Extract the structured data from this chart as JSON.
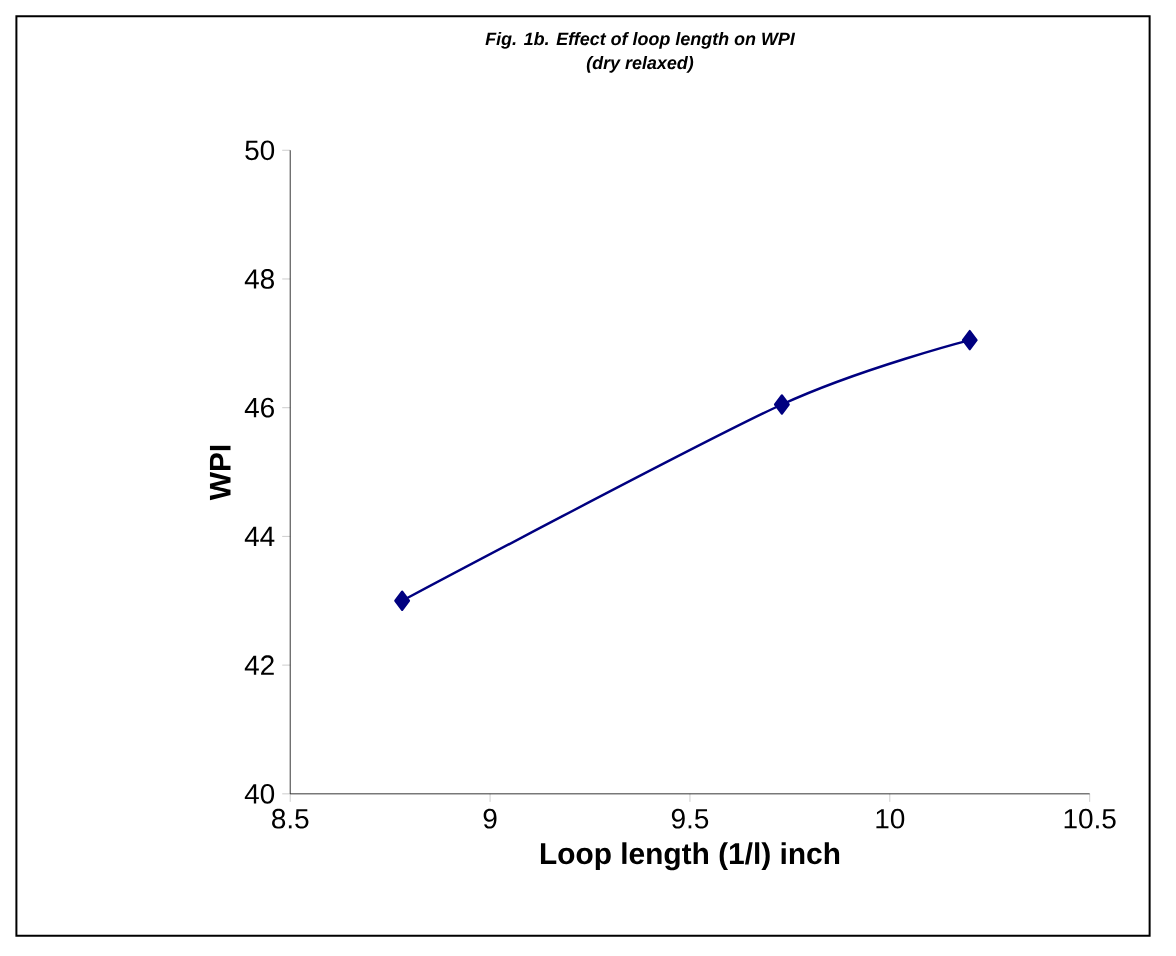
{
  "chart_data": {
    "type": "line",
    "title": "Fig. 1b. Effect of loop length on WPI",
    "subtitle": "(dry relaxed)",
    "xlabel": "Loop length (1/l) inch",
    "ylabel": "WPI",
    "x": [
      8.78,
      9.73,
      10.2
    ],
    "series": [
      {
        "color": "#000080",
        "values": [
          43,
          46.05,
          47.05
        ]
      }
    ],
    "xlim": [
      8.5,
      10.5
    ],
    "xticks": [
      8.5,
      9,
      9.5,
      10,
      10.5
    ],
    "ylim": [
      40,
      50
    ],
    "yticks": [
      40,
      42,
      44,
      46,
      48,
      50
    ],
    "marker": "diamond",
    "line_style": "solid"
  }
}
